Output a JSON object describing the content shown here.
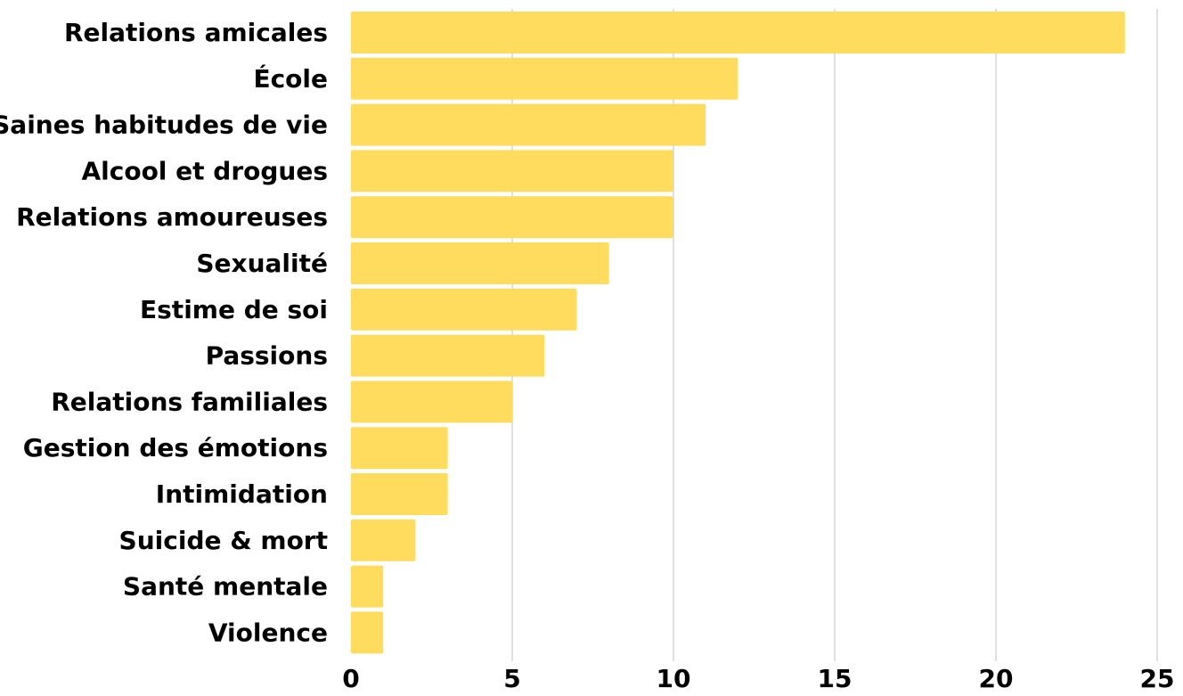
{
  "chart_data": {
    "type": "bar",
    "orientation": "horizontal",
    "categories": [
      "Relations amicales",
      "École",
      "Saines habitudes de vie",
      "Alcool et drogues",
      "Relations amoureuses",
      "Sexualité",
      "Estime de soi",
      "Passions",
      "Relations familiales",
      "Gestion des émotions",
      "Intimidation",
      "Suicide & mort",
      "Santé mentale",
      "Violence"
    ],
    "values": [
      24,
      12,
      11,
      10,
      10,
      8,
      7,
      6,
      5,
      3,
      3,
      2,
      1,
      1
    ],
    "xlim": [
      0,
      25
    ],
    "xticks": [
      "0",
      "5",
      "10",
      "15",
      "20",
      "25"
    ],
    "title": "",
    "xlabel": "",
    "ylabel": "",
    "grid": "vertical",
    "colors": {
      "bar": "#FFDC5E",
      "grid": "#d6d6d6",
      "text": "#000000"
    }
  }
}
